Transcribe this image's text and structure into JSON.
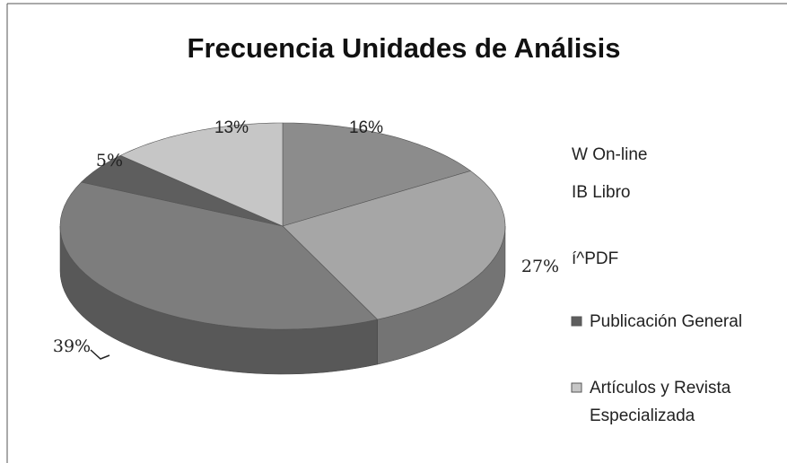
{
  "chart_data": {
    "type": "pie",
    "title": "Frecuencia Unidades de Análisis",
    "categories": [
      "W On-line",
      "IB Libro",
      "í^PDF",
      "Publicación General",
      "Artículos y Revista Especializada"
    ],
    "values": [
      16,
      27,
      39,
      5,
      13
    ],
    "value_labels": [
      "16%",
      "27%",
      "39%",
      "5%",
      "13%"
    ],
    "colors": [
      "#8c8c8c",
      "#a6a6a6",
      "#7d7d7d",
      "#5e5e5e",
      "#c6c6c6"
    ]
  }
}
